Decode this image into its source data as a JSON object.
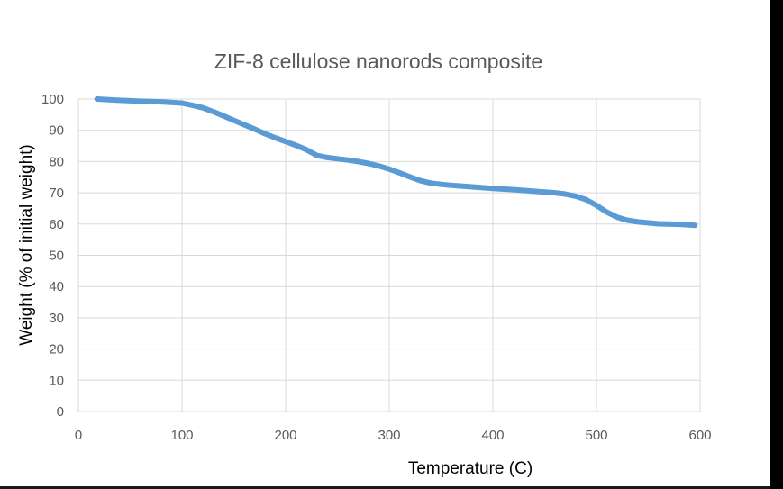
{
  "chart_data": {
    "type": "line",
    "title": "ZIF-8 cellulose nanorods composite",
    "xlabel": "Temperature (C)",
    "ylabel": "Weight (% of initial weight)",
    "xlim": [
      0,
      600
    ],
    "ylim": [
      0,
      100
    ],
    "x_ticks": [
      0,
      100,
      200,
      300,
      400,
      500,
      600
    ],
    "y_ticks": [
      0,
      10,
      20,
      30,
      40,
      50,
      60,
      70,
      80,
      90,
      100
    ],
    "grid": true,
    "legend": "none",
    "series": [
      {
        "color": "#5b9bd5",
        "x": [
          18,
          40,
          60,
          80,
          100,
          110,
          120,
          130,
          140,
          150,
          160,
          170,
          180,
          190,
          200,
          210,
          220,
          230,
          240,
          250,
          260,
          270,
          280,
          290,
          300,
          310,
          320,
          330,
          340,
          350,
          360,
          380,
          400,
          420,
          440,
          460,
          470,
          480,
          490,
          500,
          510,
          520,
          530,
          540,
          560,
          580,
          595
        ],
        "y": [
          100,
          99.6,
          99.3,
          99.1,
          98.7,
          98.0,
          97.2,
          96.0,
          94.6,
          93.2,
          91.8,
          90.4,
          88.9,
          87.6,
          86.4,
          85.2,
          83.8,
          82.0,
          81.3,
          80.9,
          80.5,
          80.0,
          79.4,
          78.6,
          77.6,
          76.4,
          75.1,
          73.9,
          73.1,
          72.7,
          72.4,
          71.9,
          71.4,
          71.0,
          70.5,
          70.0,
          69.6,
          68.9,
          67.8,
          66.0,
          63.8,
          62.2,
          61.2,
          60.7,
          60.1,
          59.9,
          59.6
        ]
      }
    ]
  }
}
